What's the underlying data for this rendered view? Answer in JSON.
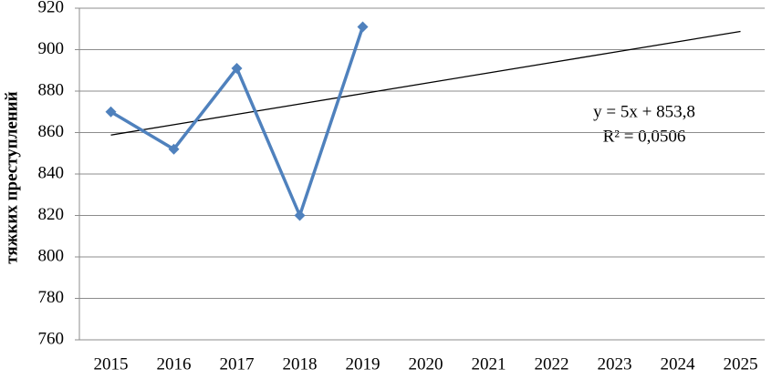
{
  "chart_data": {
    "type": "line",
    "y_label": "тяжких преступлений",
    "categories": [
      "2015",
      "2016",
      "2017",
      "2018",
      "2019",
      "2020",
      "2021",
      "2022",
      "2023",
      "2024",
      "2025"
    ],
    "series": [
      {
        "name": "тяжких преступлений",
        "color": "#4f81bd",
        "values": [
          870,
          852,
          891,
          820,
          911,
          null,
          null,
          null,
          null,
          null,
          null
        ]
      }
    ],
    "trendline": {
      "color": "#000000",
      "values": [
        858.8,
        863.8,
        868.8,
        873.8,
        878.8,
        883.8,
        888.8,
        893.8,
        898.8,
        903.8,
        908.8
      ]
    },
    "annotations": [
      "y = 5x + 853,8",
      "R² = 0,0506"
    ],
    "ylim": [
      760,
      920
    ],
    "yticks": [
      760,
      780,
      800,
      820,
      840,
      860,
      880,
      900,
      920
    ],
    "grid": true,
    "legend": false
  }
}
